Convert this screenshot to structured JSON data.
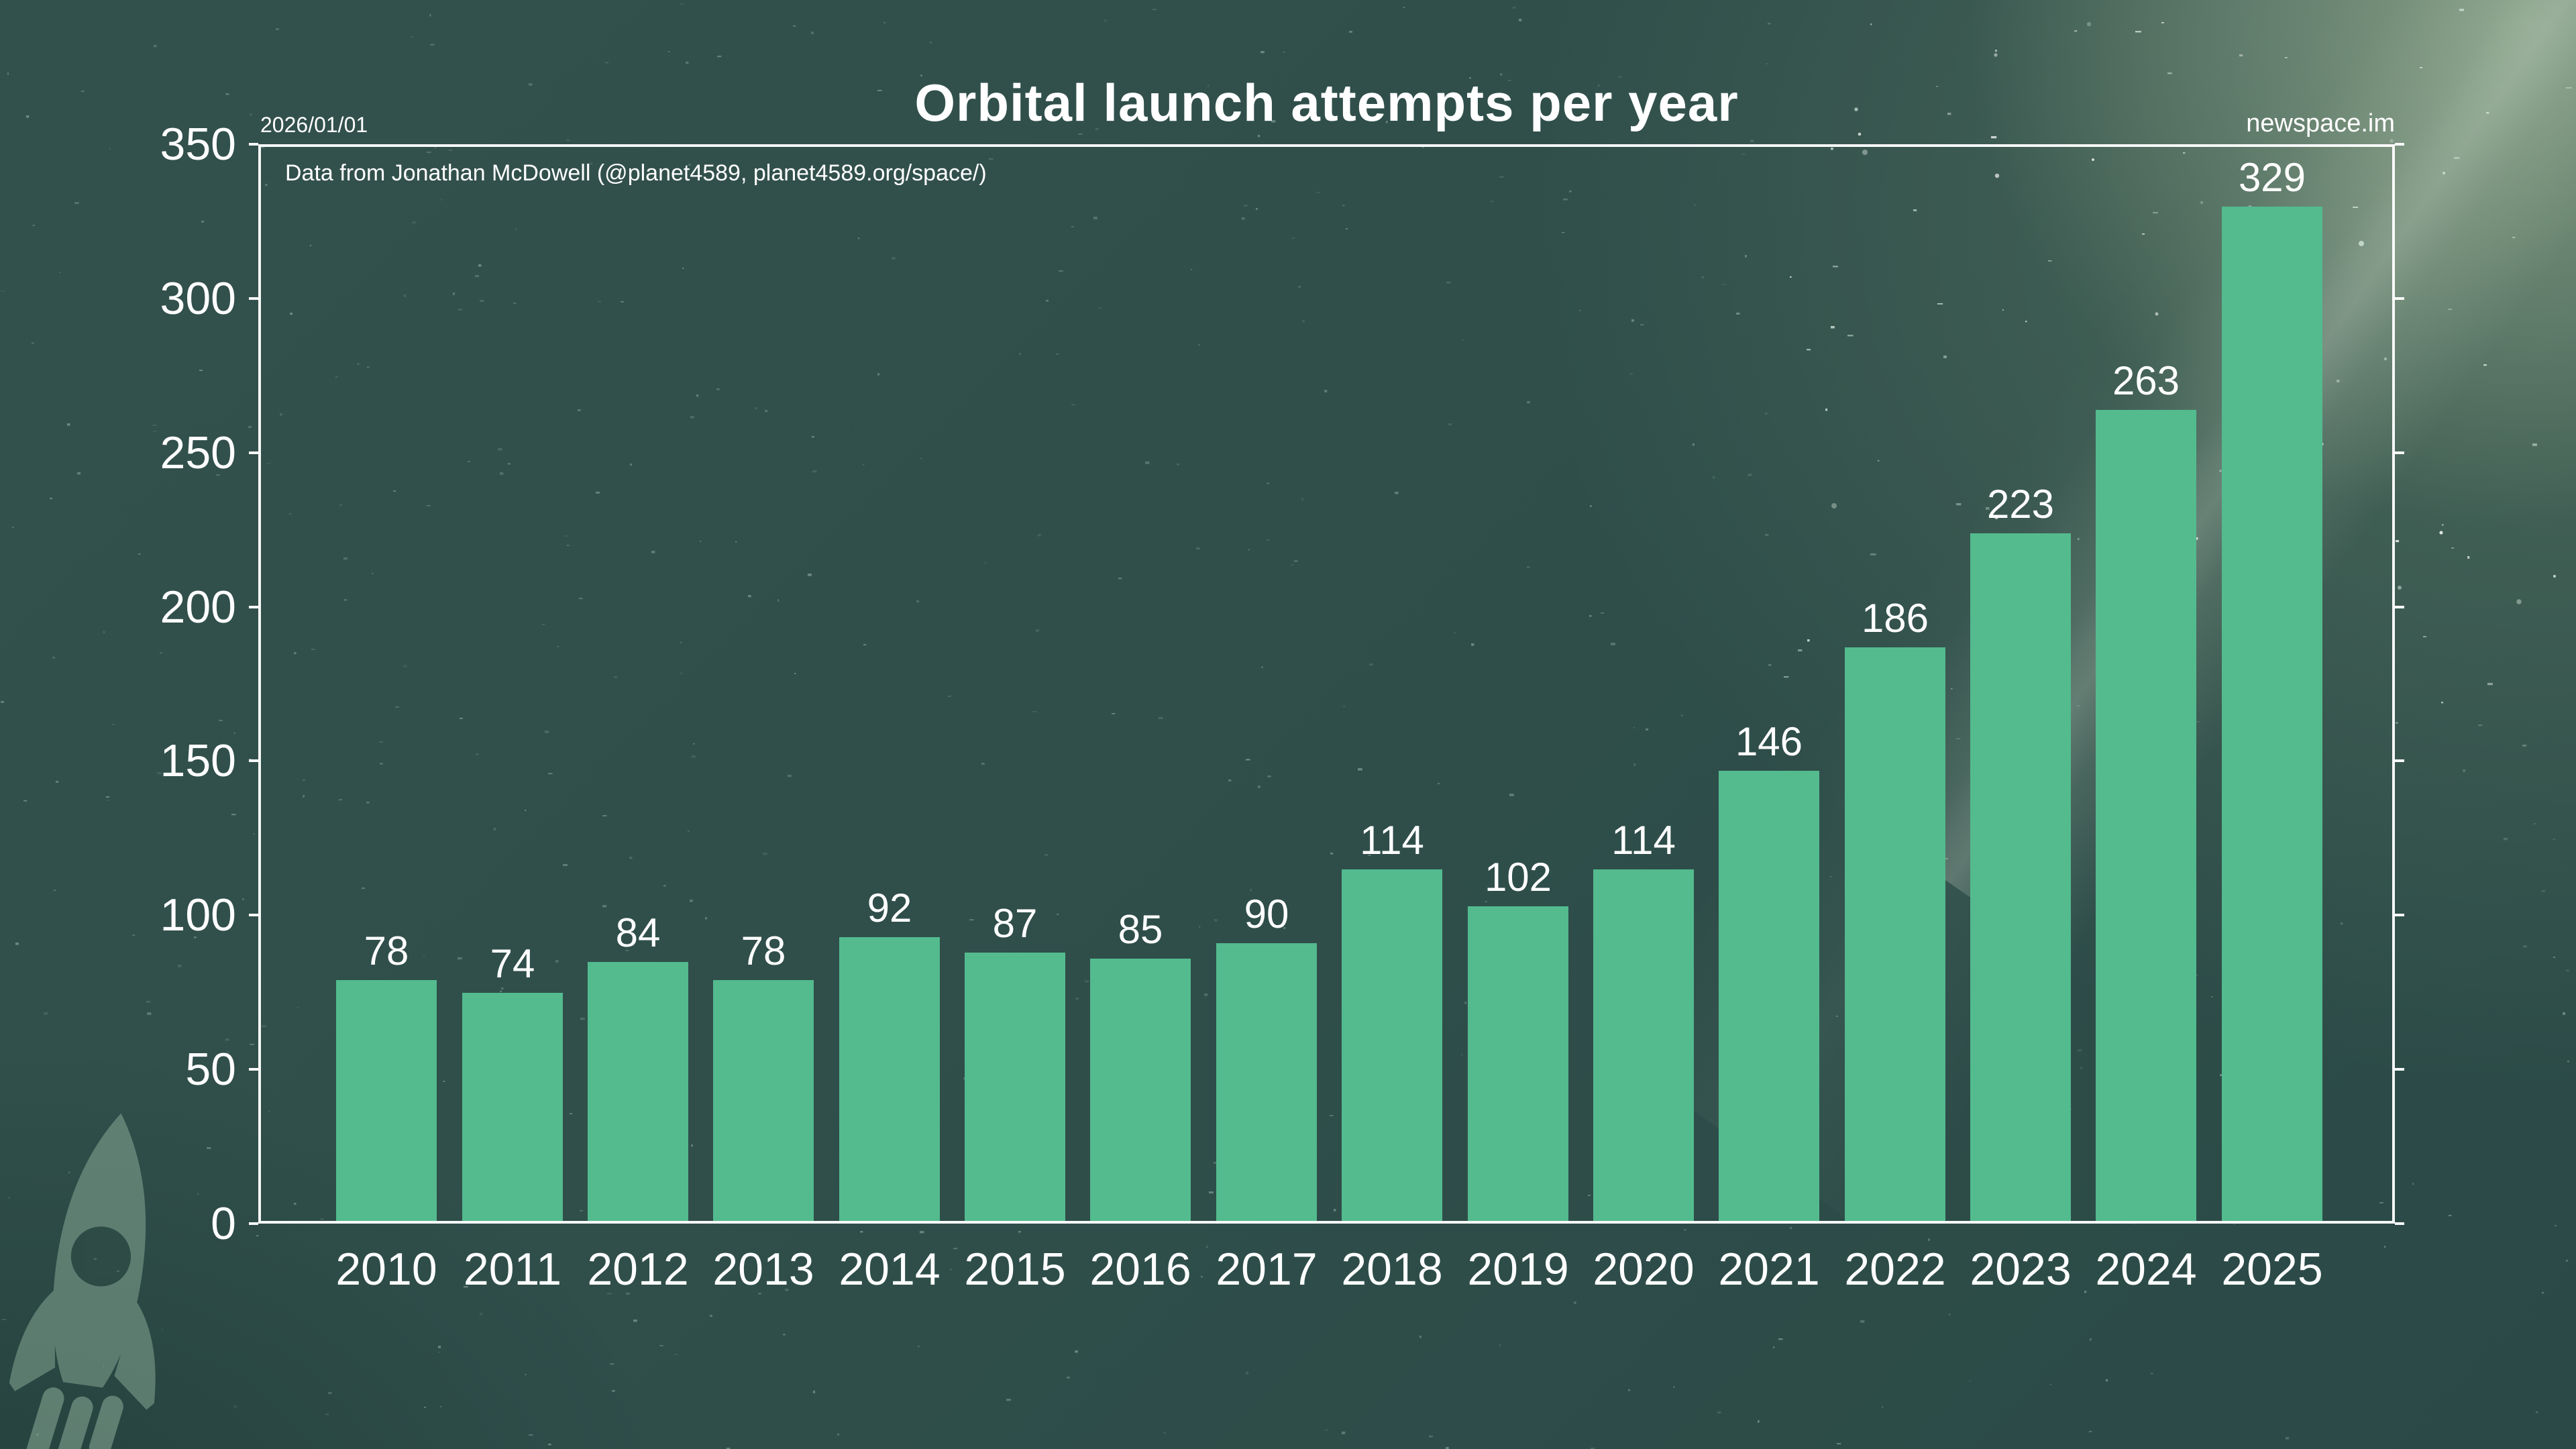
{
  "page": {
    "header": {
      "title": "Orbital launch attempts per year",
      "date": "2026/01/01",
      "site": "newspace.im"
    },
    "annotation": "Data from Jonathan McDowell (@planet4589, planet4589.org/space/)",
    "background": {
      "base_color": "#2f4e4a",
      "glow_color": "#a9bfa2",
      "star_color": "#d6e8dc",
      "watermark_icon": "rocket-icon"
    }
  },
  "chart_data": {
    "type": "bar",
    "title": "Orbital launch attempts per year",
    "categories": [
      "2010",
      "2011",
      "2012",
      "2013",
      "2014",
      "2015",
      "2016",
      "2017",
      "2018",
      "2019",
      "2020",
      "2021",
      "2022",
      "2023",
      "2024",
      "2025"
    ],
    "values": [
      78,
      74,
      84,
      78,
      92,
      87,
      85,
      90,
      114,
      102,
      114,
      146,
      186,
      223,
      263,
      329
    ],
    "xlabel": "",
    "ylabel": "",
    "ylim": [
      0,
      350
    ],
    "yticks": [
      0,
      50,
      100,
      150,
      200,
      250,
      300,
      350
    ],
    "grid": false,
    "legend": "none",
    "bar_color": "#53bb8e",
    "label_color": "#ffffff",
    "value_labels_shown": true
  }
}
